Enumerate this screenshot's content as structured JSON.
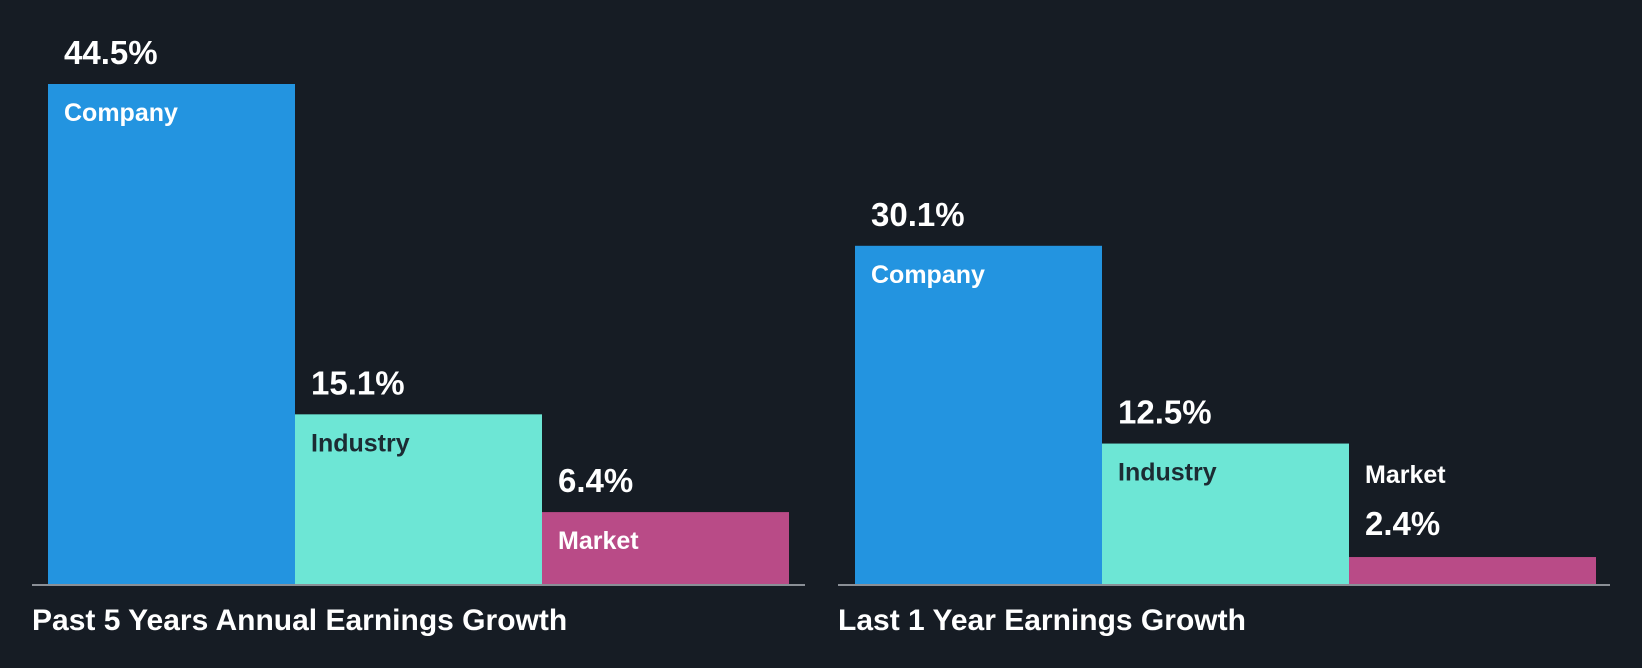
{
  "colors": {
    "background": "#161c24",
    "company": "#2394e0",
    "industry": "#6de6d5",
    "market": "#b94b87",
    "baseline": "#8a8f96"
  },
  "chart_data": [
    {
      "type": "bar",
      "title": "Past 5 Years Annual Earnings Growth",
      "categories": [
        "Company",
        "Industry",
        "Market"
      ],
      "values": [
        44.5,
        15.1,
        6.4
      ],
      "value_labels": [
        "44.5%",
        "15.1%",
        "6.4%"
      ],
      "colors": [
        "#2394e0",
        "#6de6d5",
        "#b94b87"
      ],
      "ylim": [
        0,
        44.5
      ],
      "grid": false,
      "legend": "none"
    },
    {
      "type": "bar",
      "title": "Last 1 Year Earnings Growth",
      "categories": [
        "Company",
        "Industry",
        "Market"
      ],
      "values": [
        30.1,
        12.5,
        2.4
      ],
      "value_labels": [
        "30.1%",
        "12.5%",
        "2.4%"
      ],
      "colors": [
        "#2394e0",
        "#6de6d5",
        "#b94b87"
      ],
      "ylim": [
        0,
        44.5
      ],
      "grid": false,
      "legend": "none"
    }
  ]
}
